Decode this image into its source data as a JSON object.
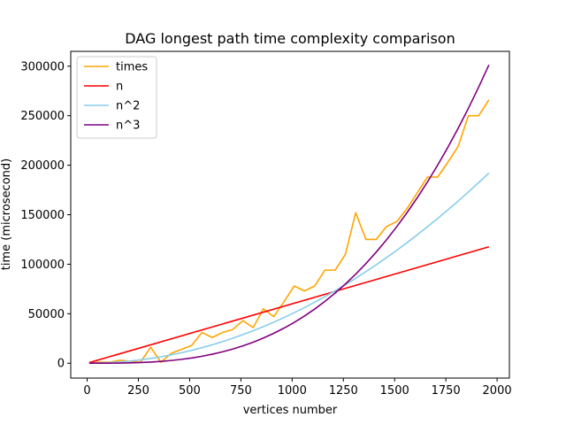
{
  "chart_data": {
    "type": "line",
    "title": "DAG longest path time complexity comparison",
    "xlabel": "vertices number",
    "ylabel": "time (microsecond)",
    "xlim": [
      -80,
      2060
    ],
    "ylim": [
      -15000,
      315000
    ],
    "xticks": [
      0,
      250,
      500,
      750,
      1000,
      1250,
      1500,
      1750,
      2000
    ],
    "yticks": [
      0,
      50000,
      100000,
      150000,
      200000,
      250000,
      300000
    ],
    "grid": false,
    "legend_position": "top-left",
    "series": [
      {
        "name": "times",
        "color": "#ffa500",
        "x": [
          10,
          60,
          110,
          160,
          210,
          260,
          310,
          360,
          410,
          460,
          510,
          560,
          610,
          660,
          710,
          760,
          810,
          860,
          910,
          960,
          1010,
          1060,
          1110,
          1160,
          1210,
          1260,
          1310,
          1360,
          1410,
          1460,
          1510,
          1560,
          1610,
          1660,
          1710,
          1760,
          1810,
          1860,
          1910,
          1960
        ],
        "y": [
          0,
          1000,
          1000,
          3000,
          2000,
          1000,
          16000,
          1000,
          10000,
          14000,
          18000,
          31000,
          26000,
          31000,
          34000,
          43000,
          36000,
          55000,
          47000,
          62000,
          78000,
          73000,
          78000,
          94000,
          94000,
          110000,
          152000,
          125000,
          125000,
          138000,
          143000,
          156000,
          172000,
          188000,
          188000,
          203000,
          219000,
          250000,
          250000,
          266000
        ]
      },
      {
        "name": "n",
        "color": "#ff0000",
        "x": [
          10,
          1960
        ],
        "y": [
          600,
          117600
        ]
      },
      {
        "name": "n^2",
        "color": "#87ceeb",
        "x": [
          10,
          60,
          110,
          160,
          210,
          260,
          310,
          360,
          410,
          460,
          510,
          560,
          610,
          660,
          710,
          760,
          810,
          860,
          910,
          960,
          1010,
          1060,
          1110,
          1160,
          1210,
          1260,
          1310,
          1360,
          1410,
          1460,
          1510,
          1560,
          1610,
          1660,
          1710,
          1760,
          1810,
          1860,
          1910,
          1960
        ],
        "y": [
          5,
          180,
          605,
          1280,
          2205,
          3380,
          4805,
          6480,
          8405,
          10580,
          13005,
          15680,
          18605,
          21780,
          25205,
          28880,
          32805,
          36980,
          41405,
          46080,
          51005,
          56180,
          61605,
          67280,
          73205,
          79380,
          85805,
          92480,
          99405,
          106580,
          114005,
          121680,
          129605,
          137780,
          146205,
          154880,
          163805,
          172980,
          182405,
          192080
        ]
      },
      {
        "name": "n^3",
        "color": "#800080",
        "x": [
          10,
          60,
          110,
          160,
          210,
          260,
          310,
          360,
          410,
          460,
          510,
          560,
          610,
          660,
          710,
          760,
          810,
          860,
          910,
          960,
          1010,
          1060,
          1110,
          1160,
          1210,
          1260,
          1310,
          1360,
          1410,
          1460,
          1510,
          1560,
          1610,
          1660,
          1710,
          1760,
          1810,
          1860,
          1910,
          1960
        ],
        "y": [
          0,
          8,
          53,
          164,
          370,
          703,
          1192,
          1866,
          2757,
          3894,
          5306,
          7025,
          9080,
          11501,
          14318,
          17561,
          21260,
          25445,
          30147,
          35394,
          41218,
          47648,
          54714,
          62446,
          70875,
          80030,
          89942,
          100640,
          112155,
          124516,
          137754,
          151898,
          166980,
          183028,
          200073,
          218145,
          237274,
          257490,
          278823,
          301303
        ]
      }
    ]
  }
}
